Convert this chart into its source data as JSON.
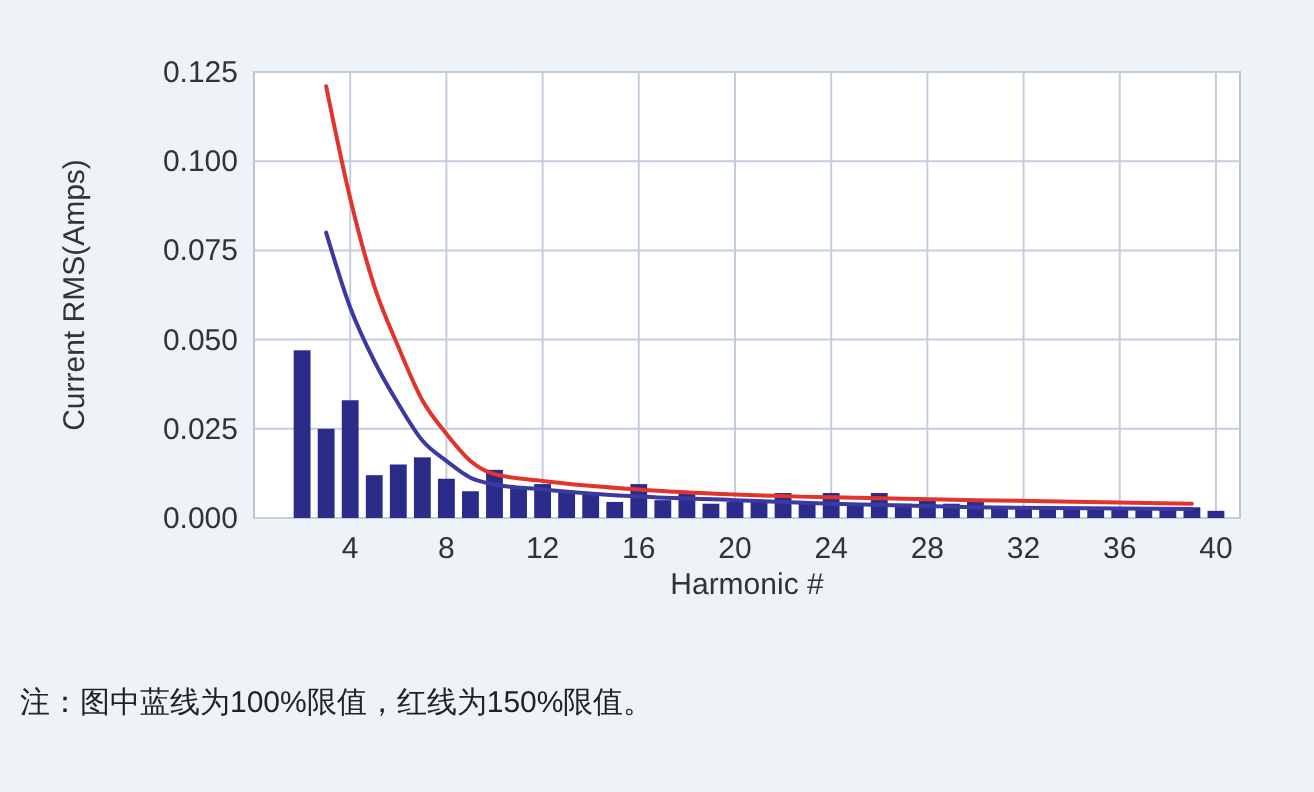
{
  "chart_data": {
    "type": "bar",
    "xlabel": "Harmonic #",
    "ylabel": "Current RMS(Amps)",
    "x": [
      2,
      3,
      4,
      5,
      6,
      7,
      8,
      9,
      10,
      11,
      12,
      13,
      14,
      15,
      16,
      17,
      18,
      19,
      20,
      21,
      22,
      23,
      24,
      25,
      26,
      27,
      28,
      29,
      30,
      31,
      32,
      33,
      34,
      35,
      36,
      37,
      38,
      39,
      40
    ],
    "series": [
      {
        "color": "#2b2b8a",
        "values": [
          0.047,
          0.025,
          0.033,
          0.012,
          0.015,
          0.017,
          0.011,
          0.0075,
          0.0135,
          0.0085,
          0.0095,
          0.007,
          0.007,
          0.0045,
          0.0095,
          0.005,
          0.0075,
          0.004,
          0.0045,
          0.0045,
          0.007,
          0.004,
          0.007,
          0.004,
          0.007,
          0.004,
          0.005,
          0.004,
          0.005,
          0.003,
          0.003,
          0.003,
          0.003,
          0.003,
          0.003,
          0.003,
          0.003,
          0.003,
          0.002
        ]
      },
      {
        "type": "line",
        "color": "#3a3aa0",
        "x": [
          3,
          4,
          5,
          6,
          7,
          8,
          9,
          10,
          12,
          16,
          20,
          24,
          30,
          39
        ],
        "values": [
          0.08,
          0.059,
          0.044,
          0.032,
          0.0217,
          0.016,
          0.0113,
          0.0094,
          0.008,
          0.006,
          0.005,
          0.004,
          0.003,
          0.0025
        ]
      },
      {
        "type": "line",
        "color": "#e0342c",
        "x": [
          3,
          4,
          5,
          6,
          7,
          8,
          9,
          10,
          12,
          16,
          20,
          24,
          30,
          39
        ],
        "values": [
          0.121,
          0.0896,
          0.065,
          0.048,
          0.033,
          0.0236,
          0.016,
          0.0123,
          0.0104,
          0.008,
          0.0066,
          0.0058,
          0.005,
          0.004
        ]
      }
    ],
    "xlim": [
      0,
      41
    ],
    "xticks": [
      4,
      8,
      12,
      16,
      20,
      24,
      28,
      32,
      36,
      40
    ],
    "ylim": [
      0,
      0.125
    ],
    "yticks": [
      {
        "value": 0,
        "label": "0.000"
      },
      {
        "value": 0.025,
        "label": "0.025"
      },
      {
        "value": 0.05,
        "label": "0.050"
      },
      {
        "value": 0.075,
        "label": "0.075"
      },
      {
        "value": 0.1,
        "label": "0.100"
      },
      {
        "value": 0.125,
        "label": "0.125"
      }
    ],
    "grid": true,
    "annotations": [
      "注：图中蓝线为100%限值，红线为150%限值。"
    ]
  }
}
